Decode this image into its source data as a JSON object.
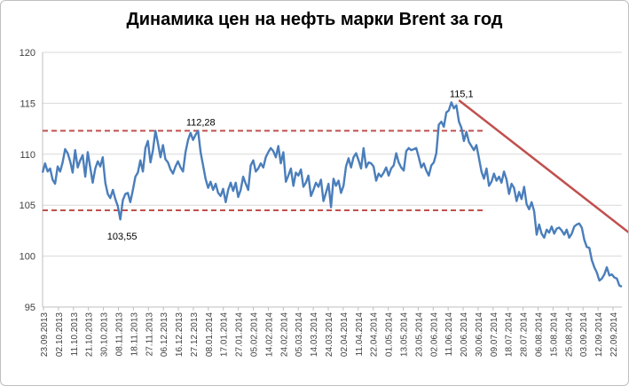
{
  "chart_data": {
    "type": "line",
    "title": "Динамика цен на нефть марки Brent за год",
    "xlabel": "",
    "ylabel": "",
    "ylim": [
      95,
      120
    ],
    "yticks": [
      95,
      100,
      105,
      110,
      115,
      120
    ],
    "grid": "horizontal",
    "legend": "none",
    "x_tick_labels": [
      "23.09.2013",
      "02.10.2013",
      "11.10.2013",
      "21.10.2013",
      "30.10.2013",
      "08.11.2013",
      "18.11.2013",
      "27.11.2013",
      "06.12.2013",
      "16.12.2013",
      "27.12.2013",
      "08.01.2014",
      "17.01.2014",
      "27.01.2014",
      "05.02.2014",
      "14.02.2014",
      "24.02.2014",
      "05.03.2014",
      "14.03.2014",
      "24.03.2014",
      "02.04.2014",
      "11.04.2014",
      "22.04.2014",
      "01.05.2014",
      "13.05.2014",
      "23.05.2014",
      "02.06.2014",
      "11.06.2014",
      "20.06.2014",
      "30.06.2014",
      "09.07.2014",
      "18.07.2014",
      "28.07.2014",
      "06.08.2014",
      "15.08.2014",
      "25.08.2014",
      "03.09.2014",
      "12.09.2014",
      "22.09.2014"
    ],
    "series": [
      {
        "color": "#4a7ebb",
        "values": [
          108.2,
          109.1,
          108.3,
          108.6,
          107.5,
          107.1,
          108.8,
          108.3,
          109.2,
          110.5,
          110.1,
          109.3,
          108.2,
          110.4,
          108.7,
          109.4,
          109.9,
          107.8,
          110.2,
          108.7,
          107.2,
          108.6,
          109.3,
          108.8,
          109.7,
          107.2,
          106.1,
          105.7,
          106.5,
          105.6,
          104.9,
          103.6,
          105.5,
          106.1,
          106.2,
          105.3,
          106.5,
          107.8,
          108.2,
          109.4,
          108.3,
          110.6,
          111.3,
          109.2,
          110.4,
          112.3,
          111.1,
          109.7,
          110.9,
          109.5,
          109.2,
          108.5,
          108.1,
          108.8,
          109.3,
          108.7,
          108.3,
          110.2,
          111.4,
          112.1,
          111.4,
          111.9,
          112.3,
          110.2,
          108.9,
          107.6,
          106.7,
          107.3,
          106.5,
          107.1,
          106.2,
          105.9,
          106.6,
          105.3,
          106.5,
          107.2,
          106.4,
          107.2,
          105.8,
          106.5,
          107.8,
          107.1,
          106.5,
          108.9,
          109.4,
          108.3,
          108.6,
          109.1,
          108.7,
          109.7,
          110.2,
          110.6,
          110.3,
          109.7,
          110.8,
          109.1,
          110.2,
          107.3,
          107.9,
          108.6,
          106.9,
          108.2,
          107.9,
          108.5,
          106.8,
          107.2,
          107.9,
          105.9,
          106.5,
          107.2,
          106.8,
          107.5,
          105.4,
          106.2,
          107.1,
          104.8,
          107.6,
          106.9,
          107.4,
          106.2,
          106.9,
          108.8,
          109.6,
          108.7,
          109.7,
          110.1,
          109.4,
          108.6,
          110.6,
          108.7,
          109.2,
          109.1,
          108.8,
          107.4,
          108.1,
          107.8,
          108.2,
          108.7,
          107.9,
          108.6,
          108.9,
          110.1,
          109.2,
          108.7,
          108.4,
          110.3,
          110.6,
          110.4,
          110.5,
          110.6,
          109.7,
          108.7,
          109.1,
          108.4,
          107.9,
          108.9,
          109.2,
          110.1,
          112.9,
          113.2,
          112.7,
          114.1,
          114.3,
          115.1,
          114.5,
          114.8,
          113.2,
          112.6,
          111.3,
          112.2,
          111.2,
          110.8,
          110.4,
          110.9,
          109.6,
          108.3,
          107.6,
          108.6,
          106.9,
          107.3,
          108.1,
          107.4,
          107.8,
          107.2,
          108.3,
          107.5,
          106.1,
          107.1,
          106.7,
          105.4,
          106.3,
          105.6,
          106.8,
          105.1,
          104.6,
          105.3,
          104.4,
          102.1,
          103.1,
          102.2,
          101.8,
          102.6,
          102.3,
          102.9,
          102.2,
          102.7,
          102.8,
          102.5,
          102.1,
          102.6,
          101.8,
          102.2,
          102.9,
          103.1,
          103.2,
          102.8,
          101.6,
          100.9,
          100.8,
          99.6,
          98.9,
          98.4,
          97.6,
          97.8,
          98.2,
          98.9,
          98.1,
          98.2,
          97.9,
          97.8,
          97.1,
          97.0
        ]
      }
    ],
    "annotations": [
      {
        "text": "112,28",
        "x_index": 62,
        "y": 112.28
      },
      {
        "text": "103,55",
        "x_index": 31,
        "y": 103.55
      },
      {
        "text": "115,1",
        "x_index": 166,
        "y": 115.1
      }
    ],
    "reference_lines": [
      {
        "style": "dashed",
        "color": "#c0504d",
        "y": 112.3,
        "from_index": 0,
        "to_index": 176
      },
      {
        "style": "dashed",
        "color": "#c0504d",
        "y": 104.5,
        "from_index": 0,
        "to_index": 176
      }
    ],
    "trend_line": {
      "color": "#c0504d",
      "from_index": 166,
      "from_y": 115.3,
      "to_index": 250,
      "to_y": 99.2
    }
  }
}
